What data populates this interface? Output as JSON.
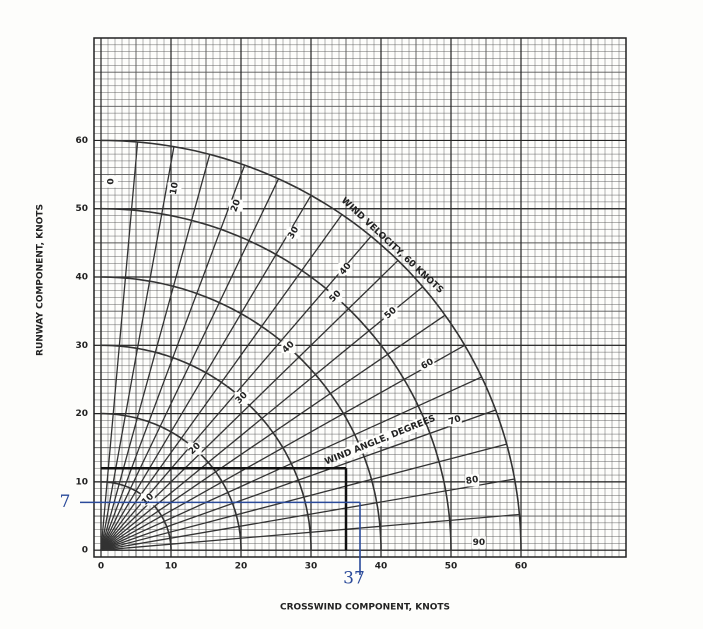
{
  "chart_data": {
    "type": "crosswind",
    "x_label": "CROSSWIND COMPONENT, KNOTS",
    "y_label": "RUNWAY COMPONENT, KNOTS",
    "xlim": [
      -1,
      75
    ],
    "ylim": [
      -1,
      75
    ],
    "xticks": [
      0,
      10,
      20,
      30,
      40,
      50,
      60
    ],
    "yticks": [
      0,
      10,
      20,
      30,
      40,
      50,
      60
    ],
    "grid": true,
    "speeds": [
      10,
      20,
      30,
      40,
      50,
      60
    ],
    "rays": [
      0,
      5,
      10,
      15,
      20,
      25,
      30,
      35,
      40,
      45,
      50,
      55,
      60,
      65,
      70,
      75,
      80,
      85,
      90
    ],
    "angles": [
      0,
      10,
      20,
      30,
      40,
      50,
      60,
      70,
      80,
      90
    ],
    "velocity_label": "WIND VELOCITY, 60 KNOTS",
    "angle_label": "WIND ANGLE, DEGREES",
    "example": {
      "x": 35,
      "y": 12
    },
    "marked_y": {
      "value": 7,
      "label": "7"
    },
    "marked_x": {
      "value": 37,
      "label": "37"
    }
  }
}
